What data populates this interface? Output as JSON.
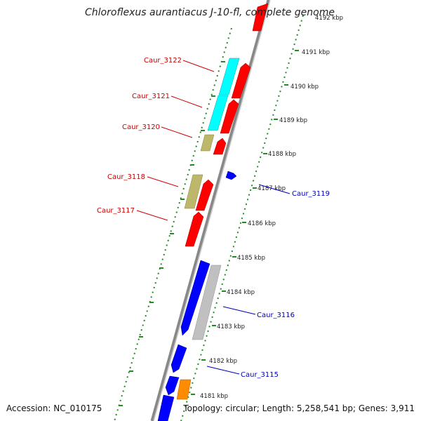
{
  "title": "Chloroflexus aurantiacus J-10-fl, complete genome",
  "footer": {
    "accession": "Accession: NC_010175",
    "topology": "Topology: circular; Length: 5,258,541 bp; Genes: 3,911"
  },
  "kbp_labels": [
    "4192 kbp",
    "4191 kbp",
    "4190 kbp",
    "4189 kbp",
    "4188 kbp",
    "4187 kbp",
    "4186 kbp",
    "4185 kbp",
    "4184 kbp",
    "4183 kbp",
    "4182 kbp",
    "4181 kbp"
  ],
  "gene_labels": {
    "caur_3122": "Caur_3122",
    "caur_3121": "Caur_3121",
    "caur_3120": "Caur_3120",
    "caur_3118": "Caur_3118",
    "caur_3117": "Caur_3117",
    "caur_3119": "Caur_3119",
    "caur_3116": "Caur_3116",
    "caur_3115": "Caur_3115"
  },
  "colors": {
    "forward_gene": "#ff0000",
    "reverse_gene": "#0000ff",
    "cyan_gene": "#00ffff",
    "khaki_gene": "#bdb76b",
    "grey_gene": "#c0c0c0",
    "orange_gene": "#ff8c00",
    "backbone": "#888888",
    "tick_dots": "#228b22",
    "red_label": "#cc0000",
    "blue_label": "#0000bb"
  }
}
